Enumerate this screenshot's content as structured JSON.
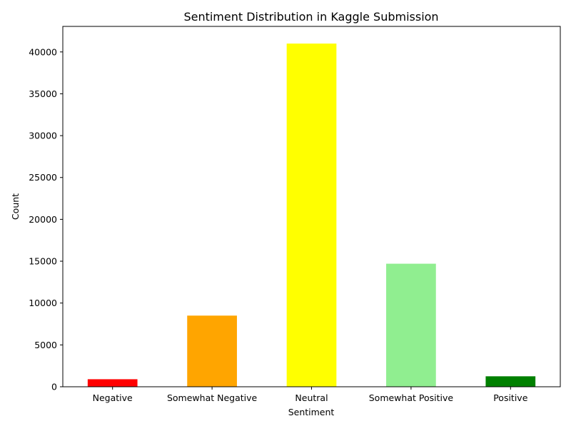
{
  "chart_data": {
    "type": "bar",
    "title": "Sentiment Distribution in Kaggle Submission",
    "xlabel": "Sentiment",
    "ylabel": "Count",
    "categories": [
      "Negative",
      "Somewhat Negative",
      "Neutral",
      "Somewhat Positive",
      "Positive"
    ],
    "values": [
      900,
      8500,
      41000,
      14700,
      1250
    ],
    "colors": [
      "#ff0000",
      "#ffa500",
      "#ffff00",
      "#90ee90",
      "#008000"
    ],
    "ylim": [
      0,
      43050
    ],
    "yticks": [
      0,
      5000,
      10000,
      15000,
      20000,
      25000,
      30000,
      35000,
      40000
    ],
    "ytick_labels": [
      "0",
      "5000",
      "10000",
      "15000",
      "20000",
      "25000",
      "30000",
      "35000",
      "40000"
    ],
    "grid": false,
    "legend": "none"
  }
}
